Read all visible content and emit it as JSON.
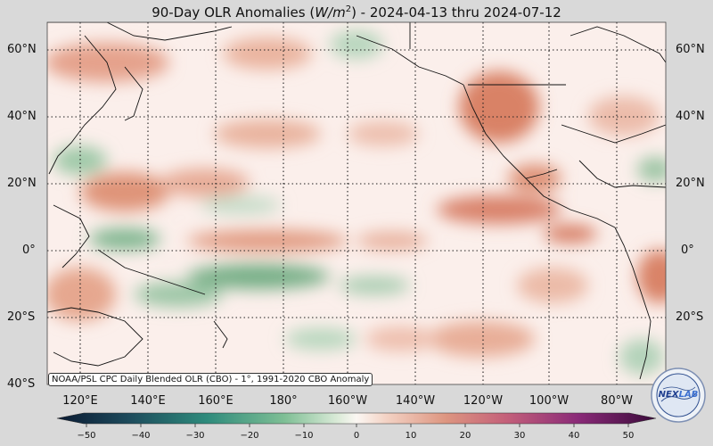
{
  "title": {
    "prefix": "90-Day OLR Anomalies (",
    "unit": "W/m",
    "unit_exp": "2",
    "suffix": ") - 2024-04-13 thru 2024-07-12"
  },
  "lat_labels": [
    "60°N",
    "40°N",
    "20°N",
    "0°",
    "20°S",
    "40°S"
  ],
  "lon_labels": [
    "120°E",
    "140°E",
    "160°E",
    "180°",
    "160°W",
    "140°W",
    "120°W",
    "100°W",
    "80°W"
  ],
  "caption": "NOAA/PSL CPC Daily Blended OLR (CBO) - 1°, 1991-2020 CBO Anomaly",
  "colorbar": {
    "ticks": [
      "−50",
      "−40",
      "−30",
      "−20",
      "−10",
      "0",
      "10",
      "20",
      "30",
      "40",
      "50"
    ],
    "range": [
      -50,
      50
    ]
  },
  "logo": {
    "text": "NEXLAB"
  },
  "colors": {
    "positive": "#c86a50",
    "negative": "#4f9a6e",
    "neutral": "#fbf0ec",
    "land_line": "#111111"
  }
}
